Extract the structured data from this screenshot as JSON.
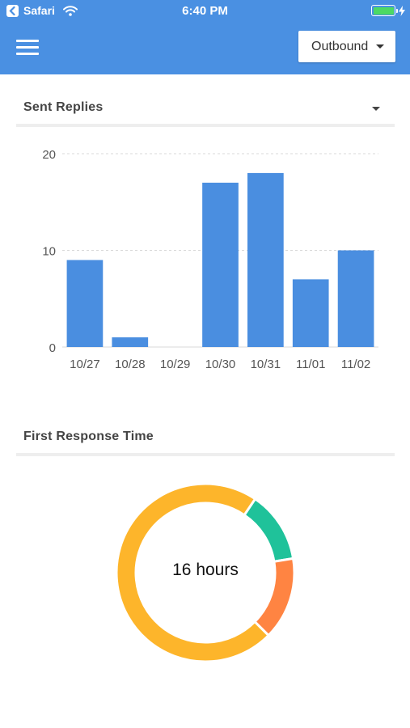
{
  "status_bar": {
    "carrier": "Safari",
    "time": "6:40 PM",
    "battery_level": 1.0
  },
  "header": {
    "menu_icon": "hamburger-menu-icon",
    "dropdown_value": "Outbound",
    "background_color": "#4a90e2"
  },
  "sent_replies": {
    "title": "Sent Replies"
  },
  "first_response": {
    "title": "First Response Time",
    "center_label": "16 hours"
  },
  "chart_data": [
    {
      "type": "bar",
      "title": "Sent Replies",
      "categories": [
        "10/27",
        "10/28",
        "10/29",
        "10/30",
        "10/31",
        "11/01",
        "11/02"
      ],
      "values": [
        9,
        1,
        0,
        17,
        18,
        7,
        10
      ],
      "yticks": [
        0,
        10,
        20
      ],
      "ylim": [
        0,
        20
      ],
      "grid": "horizontal dashed",
      "color": "#4a8ee0"
    },
    {
      "type": "pie",
      "title": "First Response Time",
      "donut": true,
      "slices": [
        {
          "value": 13,
          "color": "#1fc29a"
        },
        {
          "value": 15,
          "color": "#ff8442"
        },
        {
          "value": 72,
          "color": "#fdb52b"
        }
      ]
    }
  ]
}
